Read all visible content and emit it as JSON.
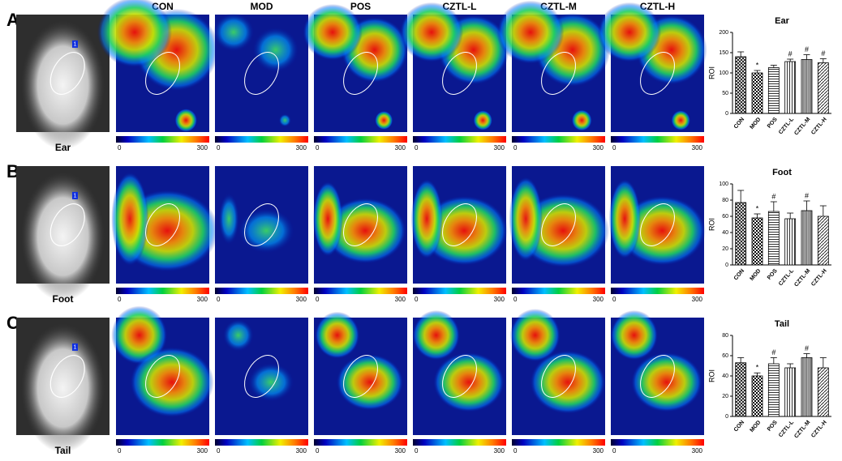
{
  "panels": [
    "A",
    "B",
    "C"
  ],
  "columns": [
    "CON",
    "MOD",
    "POS",
    "CZTL-L",
    "CZTL-M",
    "CZTL-H"
  ],
  "row_labels": [
    "Ear",
    "Foot",
    "Tail"
  ],
  "roi_label": "1",
  "colorbar_ticks": [
    0,
    300
  ],
  "chart_data": [
    {
      "type": "bar",
      "title": "Ear",
      "y_label": "ROI",
      "categories": [
        "CON",
        "MOD",
        "POS",
        "CZTL-L",
        "CZTL-M",
        "CZTL-H"
      ],
      "values": [
        140,
        100,
        113,
        128,
        133,
        125
      ],
      "errors": [
        12,
        6,
        6,
        6,
        12,
        10
      ],
      "markers": [
        null,
        "*",
        null,
        "#",
        "#",
        "#"
      ],
      "ylim": [
        0,
        200
      ],
      "yticks": [
        0,
        50,
        100,
        150,
        200
      ]
    },
    {
      "type": "bar",
      "title": "Foot",
      "y_label": "ROI",
      "categories": [
        "CON",
        "MOD",
        "POS",
        "CZTL-L",
        "CZTL-M",
        "CZTL-H"
      ],
      "values": [
        77,
        58,
        66,
        57,
        67,
        60
      ],
      "errors": [
        15,
        5,
        12,
        7,
        12,
        13
      ],
      "markers": [
        null,
        "*",
        "#",
        null,
        "#",
        null
      ],
      "ylim": [
        0,
        100
      ],
      "yticks": [
        0,
        20,
        40,
        60,
        80,
        100
      ]
    },
    {
      "type": "bar",
      "title": "Tail",
      "y_label": "ROI",
      "categories": [
        "CON",
        "MOD",
        "POS",
        "CZTL-L",
        "CZTL-M",
        "CZTL-H"
      ],
      "values": [
        53,
        40,
        52,
        48,
        58,
        48
      ],
      "errors": [
        5,
        3,
        6,
        4,
        4,
        10
      ],
      "markers": [
        null,
        "*",
        "#",
        null,
        "#",
        null
      ],
      "ylim": [
        0,
        80
      ],
      "yticks": [
        0,
        20,
        40,
        60,
        80
      ]
    }
  ]
}
